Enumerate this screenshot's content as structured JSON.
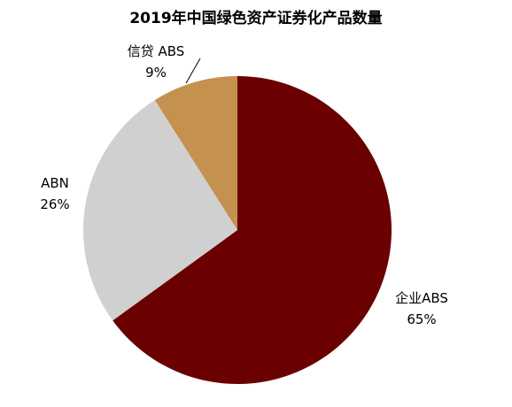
{
  "chart_data": {
    "type": "pie",
    "title": "2019年中国绿色资产证券化产品数量",
    "start_angle_deg": 0,
    "direction": "clockwise",
    "slices": [
      {
        "label": "企业ABS",
        "value": 65,
        "value_label": "65%",
        "color": "#6B0000"
      },
      {
        "label": "ABN",
        "value": 26,
        "value_label": "26%",
        "color": "#D0D0D0"
      },
      {
        "label": "信贷 ABS",
        "value": 9,
        "value_label": "9%",
        "color": "#C4914F"
      }
    ],
    "legend": "none"
  }
}
